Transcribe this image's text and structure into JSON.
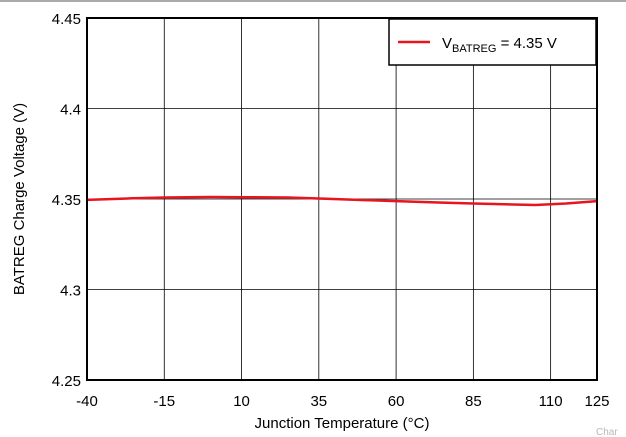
{
  "chart_data": {
    "type": "line",
    "xlabel": "Junction Temperature (°C)",
    "ylabel": "BATREG Charge Voltage (V)",
    "xlim": [
      -40,
      125
    ],
    "ylim": [
      4.25,
      4.45
    ],
    "x_ticks": [
      "-40",
      "-15",
      "10",
      "35",
      "60",
      "85",
      "110",
      "125"
    ],
    "x_tick_values": [
      -40,
      -15,
      10,
      35,
      60,
      85,
      110,
      125
    ],
    "y_ticks": [
      "4.25",
      "4.3",
      "4.35",
      "4.4",
      "4.45"
    ],
    "y_tick_values": [
      4.25,
      4.3,
      4.35,
      4.4,
      4.45
    ],
    "grid": true,
    "legend_position": "top-right",
    "series": [
      {
        "name_main": "V",
        "name_sub": "BATREG",
        "name_suffix": " = 4.35 V",
        "color": "#e8141e",
        "x": [
          -40,
          -25,
          -15,
          0,
          10,
          25,
          35,
          50,
          60,
          75,
          85,
          95,
          105,
          115,
          125
        ],
        "y": [
          4.3495,
          4.3504,
          4.3508,
          4.3511,
          4.351,
          4.3508,
          4.3503,
          4.3494,
          4.3488,
          4.348,
          4.3475,
          4.3471,
          4.3467,
          4.3475,
          4.3488
        ]
      }
    ]
  },
  "watermark": "Char"
}
